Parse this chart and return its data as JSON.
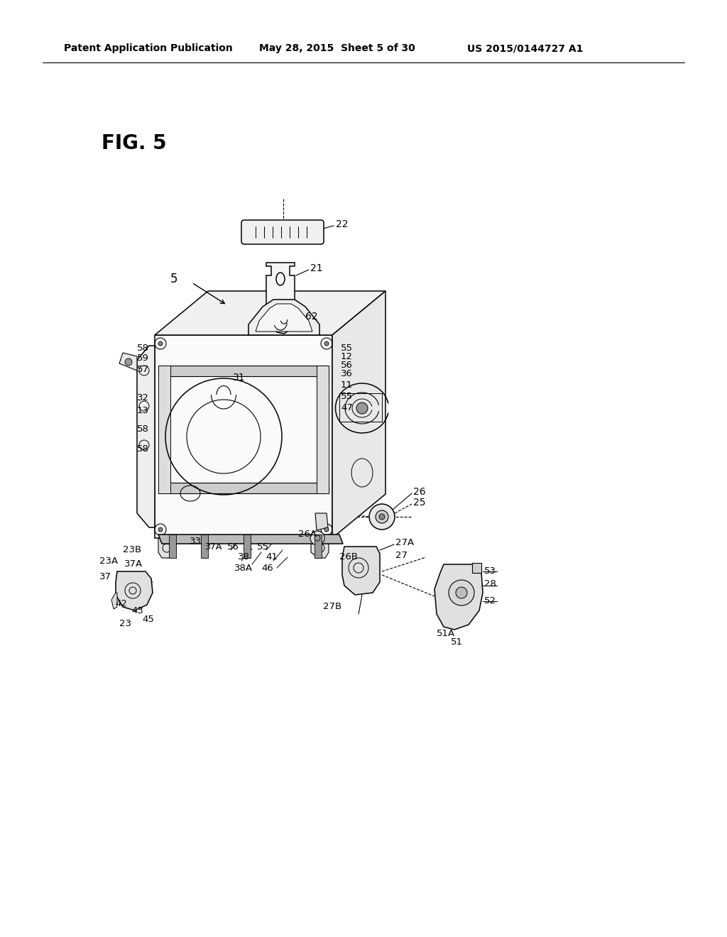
{
  "bg_color": "#ffffff",
  "header_left": "Patent Application Publication",
  "header_mid": "May 28, 2015  Sheet 5 of 30",
  "header_right": "US 2015/0144727 A1",
  "fig_label": "FIG. 5",
  "text_color": "#000000",
  "line_color": "#000000"
}
